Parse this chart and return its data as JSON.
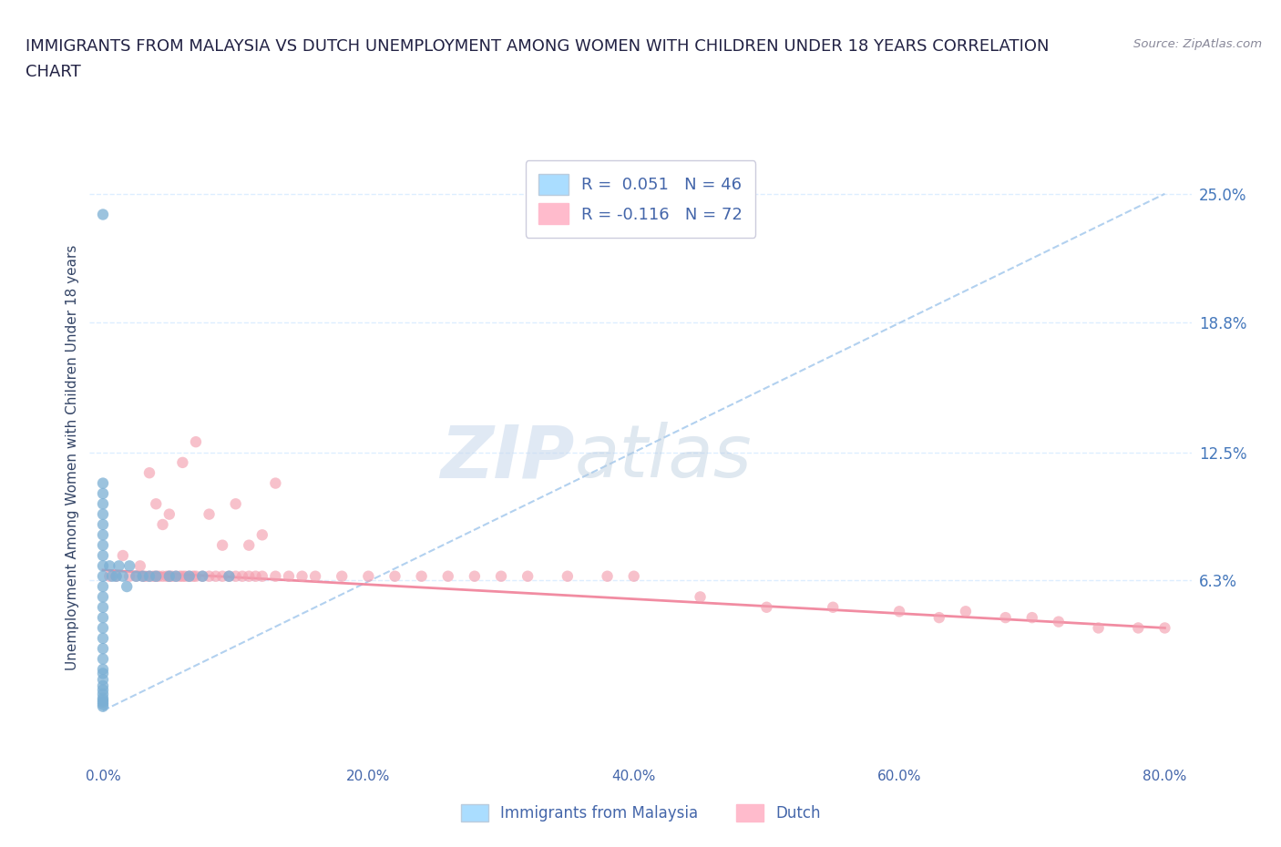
{
  "title_line1": "IMMIGRANTS FROM MALAYSIA VS DUTCH UNEMPLOYMENT AMONG WOMEN WITH CHILDREN UNDER 18 YEARS CORRELATION",
  "title_line2": "CHART",
  "source": "Source: ZipAtlas.com",
  "ylabel": "Unemployment Among Women with Children Under 18 years",
  "xlabel_ticks": [
    "0.0%",
    "20.0%",
    "40.0%",
    "60.0%",
    "80.0%"
  ],
  "xlabel_vals": [
    0.0,
    0.2,
    0.4,
    0.6,
    0.8
  ],
  "ylabel_ticks_right": [
    "25.0%",
    "18.8%",
    "12.5%",
    "6.3%"
  ],
  "ylabel_vals_right": [
    0.25,
    0.188,
    0.125,
    0.063
  ],
  "xlim": [
    -0.01,
    0.82
  ],
  "ylim": [
    -0.025,
    0.27
  ],
  "legend_label1": "R =  0.051   N = 46",
  "legend_label2": "R = -0.116   N = 72",
  "legend_bottom1": "Immigrants from Malaysia",
  "legend_bottom2": "Dutch",
  "color_blue": "#7BAFD4",
  "color_pink": "#F4A0B0",
  "color_trend_blue": "#AACCEE",
  "color_trend_pink": "#F08098",
  "title_color": "#222244",
  "axis_label_color": "#334466",
  "tick_color": "#4466AA",
  "right_tick_color": "#4477BB",
  "watermark_color": "#C8D8E8",
  "grid_color": "#DDEEFF",
  "malaysia_trend_x0": 0.0,
  "malaysia_trend_y0": 0.0,
  "malaysia_trend_x1": 0.8,
  "malaysia_trend_y1": 0.25,
  "dutch_trend_x0": 0.0,
  "dutch_trend_y0": 0.068,
  "dutch_trend_x1": 0.8,
  "dutch_trend_y1": 0.04,
  "malaysia_x": [
    0.0,
    0.0,
    0.0,
    0.0,
    0.0,
    0.0,
    0.0,
    0.0,
    0.0,
    0.0,
    0.0,
    0.0,
    0.0,
    0.0,
    0.0,
    0.0,
    0.0,
    0.0,
    0.0,
    0.0,
    0.0,
    0.0,
    0.0,
    0.0,
    0.0,
    0.0,
    0.0,
    0.0,
    0.0,
    0.0,
    0.005,
    0.007,
    0.01,
    0.012,
    0.015,
    0.018,
    0.02,
    0.025,
    0.03,
    0.035,
    0.04,
    0.05,
    0.055,
    0.065,
    0.075,
    0.095
  ],
  "malaysia_y": [
    0.24,
    0.11,
    0.105,
    0.1,
    0.095,
    0.09,
    0.085,
    0.08,
    0.075,
    0.07,
    0.065,
    0.06,
    0.055,
    0.05,
    0.045,
    0.04,
    0.035,
    0.03,
    0.025,
    0.02,
    0.018,
    0.015,
    0.012,
    0.01,
    0.008,
    0.006,
    0.005,
    0.004,
    0.003,
    0.002,
    0.07,
    0.065,
    0.065,
    0.07,
    0.065,
    0.06,
    0.07,
    0.065,
    0.065,
    0.065,
    0.065,
    0.065,
    0.065,
    0.065,
    0.065,
    0.065
  ],
  "dutch_x": [
    0.005,
    0.01,
    0.015,
    0.02,
    0.025,
    0.028,
    0.03,
    0.032,
    0.035,
    0.038,
    0.04,
    0.042,
    0.045,
    0.048,
    0.05,
    0.052,
    0.055,
    0.058,
    0.06,
    0.062,
    0.065,
    0.068,
    0.07,
    0.075,
    0.08,
    0.085,
    0.09,
    0.095,
    0.1,
    0.105,
    0.11,
    0.115,
    0.12,
    0.13,
    0.14,
    0.15,
    0.16,
    0.18,
    0.2,
    0.22,
    0.24,
    0.26,
    0.28,
    0.3,
    0.32,
    0.35,
    0.38,
    0.4,
    0.45,
    0.5,
    0.55,
    0.6,
    0.63,
    0.65,
    0.68,
    0.7,
    0.72,
    0.75,
    0.78,
    0.8,
    0.035,
    0.04,
    0.045,
    0.05,
    0.06,
    0.07,
    0.08,
    0.09,
    0.1,
    0.11,
    0.12,
    0.13
  ],
  "dutch_y": [
    0.065,
    0.065,
    0.075,
    0.065,
    0.065,
    0.07,
    0.065,
    0.065,
    0.065,
    0.065,
    0.065,
    0.065,
    0.065,
    0.065,
    0.065,
    0.065,
    0.065,
    0.065,
    0.065,
    0.065,
    0.065,
    0.065,
    0.065,
    0.065,
    0.065,
    0.065,
    0.065,
    0.065,
    0.065,
    0.065,
    0.065,
    0.065,
    0.065,
    0.065,
    0.065,
    0.065,
    0.065,
    0.065,
    0.065,
    0.065,
    0.065,
    0.065,
    0.065,
    0.065,
    0.065,
    0.065,
    0.065,
    0.065,
    0.055,
    0.05,
    0.05,
    0.048,
    0.045,
    0.048,
    0.045,
    0.045,
    0.043,
    0.04,
    0.04,
    0.04,
    0.115,
    0.1,
    0.09,
    0.095,
    0.12,
    0.13,
    0.095,
    0.08,
    0.1,
    0.08,
    0.085,
    0.11
  ]
}
